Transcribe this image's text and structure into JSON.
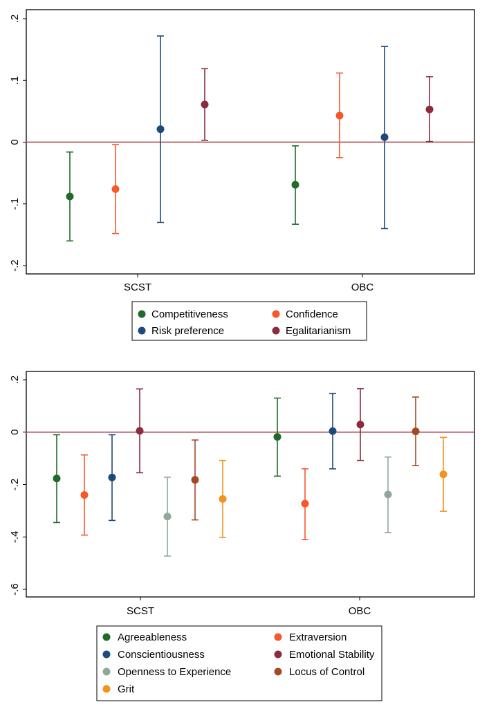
{
  "chart_data": [
    {
      "type": "scatter",
      "title": "",
      "xlabel": "",
      "ylabel": "",
      "ylim": [
        -0.2,
        0.2
      ],
      "yticks": [
        -0.2,
        -0.1,
        0,
        0.1,
        0.2
      ],
      "ytick_labels": [
        "-.2",
        "-.1",
        "0",
        ".1",
        ".2"
      ],
      "categories": [
        "SCST",
        "OBC"
      ],
      "reference_line": 0,
      "reference_line_color": "#b5565e",
      "grid": false,
      "legend_position": "bottom",
      "legend_columns": 2,
      "series": [
        {
          "name": "Competitiveness",
          "color": "#1f6b2a",
          "estimates": [
            -0.088,
            -0.069
          ],
          "ci_low": [
            -0.16,
            -0.133
          ],
          "ci_high": [
            -0.016,
            -0.006
          ]
        },
        {
          "name": "Confidence",
          "color": "#f5582a",
          "estimates": [
            -0.076,
            0.043
          ],
          "ci_low": [
            -0.148,
            -0.025
          ],
          "ci_high": [
            -0.004,
            0.112
          ]
        },
        {
          "name": "Risk preference",
          "color": "#1d4a7a",
          "estimates": [
            0.021,
            0.008
          ],
          "ci_low": [
            -0.13,
            -0.14
          ],
          "ci_high": [
            0.172,
            0.155
          ]
        },
        {
          "name": "Egalitarianism",
          "color": "#8b2c3e",
          "estimates": [
            0.061,
            0.053
          ],
          "ci_low": [
            0.003,
            0.001
          ],
          "ci_high": [
            0.119,
            0.106
          ]
        }
      ]
    },
    {
      "type": "scatter",
      "title": "",
      "xlabel": "",
      "ylabel": "",
      "ylim": [
        -0.6,
        0.2
      ],
      "yticks": [
        -0.6,
        -0.4,
        -0.2,
        0,
        0.2
      ],
      "ytick_labels": [
        "-.6",
        "-.4",
        "-.2",
        "0",
        ".2"
      ],
      "categories": [
        "SCST",
        "OBC"
      ],
      "reference_line": 0,
      "reference_line_color": "#b5565e",
      "grid": false,
      "legend_position": "bottom",
      "legend_columns": 2,
      "series": [
        {
          "name": "Agreeableness",
          "color": "#1f6b2a",
          "estimates": [
            -0.177,
            -0.018
          ],
          "ci_low": [
            -0.345,
            -0.168
          ],
          "ci_high": [
            -0.01,
            0.13
          ]
        },
        {
          "name": "Extraversion",
          "color": "#f5582a",
          "estimates": [
            -0.24,
            -0.273
          ],
          "ci_low": [
            -0.393,
            -0.41
          ],
          "ci_high": [
            -0.087,
            -0.14
          ]
        },
        {
          "name": "Conscientiousness",
          "color": "#1d4a7a",
          "estimates": [
            -0.173,
            0.004
          ],
          "ci_low": [
            -0.337,
            -0.14
          ],
          "ci_high": [
            -0.01,
            0.148
          ]
        },
        {
          "name": "Emotional Stability",
          "color": "#8b2c3e",
          "estimates": [
            0.005,
            0.029
          ],
          "ci_low": [
            -0.155,
            -0.108
          ],
          "ci_high": [
            0.165,
            0.166
          ]
        },
        {
          "name": "Openness to Experience",
          "color": "#8fa89a",
          "estimates": [
            -0.322,
            -0.238
          ],
          "ci_low": [
            -0.473,
            -0.383
          ],
          "ci_high": [
            -0.172,
            -0.095
          ]
        },
        {
          "name": "Locus of Control",
          "color": "#a34a25",
          "estimates": [
            -0.182,
            0.003
          ],
          "ci_low": [
            -0.335,
            -0.128
          ],
          "ci_high": [
            -0.03,
            0.134
          ]
        },
        {
          "name": "Grit",
          "color": "#f5921e",
          "estimates": [
            -0.255,
            -0.161
          ],
          "ci_low": [
            -0.402,
            -0.302
          ],
          "ci_high": [
            -0.108,
            -0.02
          ]
        }
      ]
    }
  ]
}
